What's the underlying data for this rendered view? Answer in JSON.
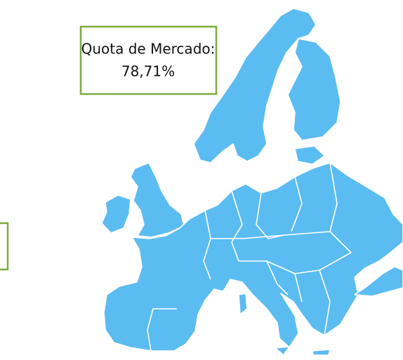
{
  "callout": {
    "label": "Quota de Mercado:",
    "value": "78,71%"
  }
}
